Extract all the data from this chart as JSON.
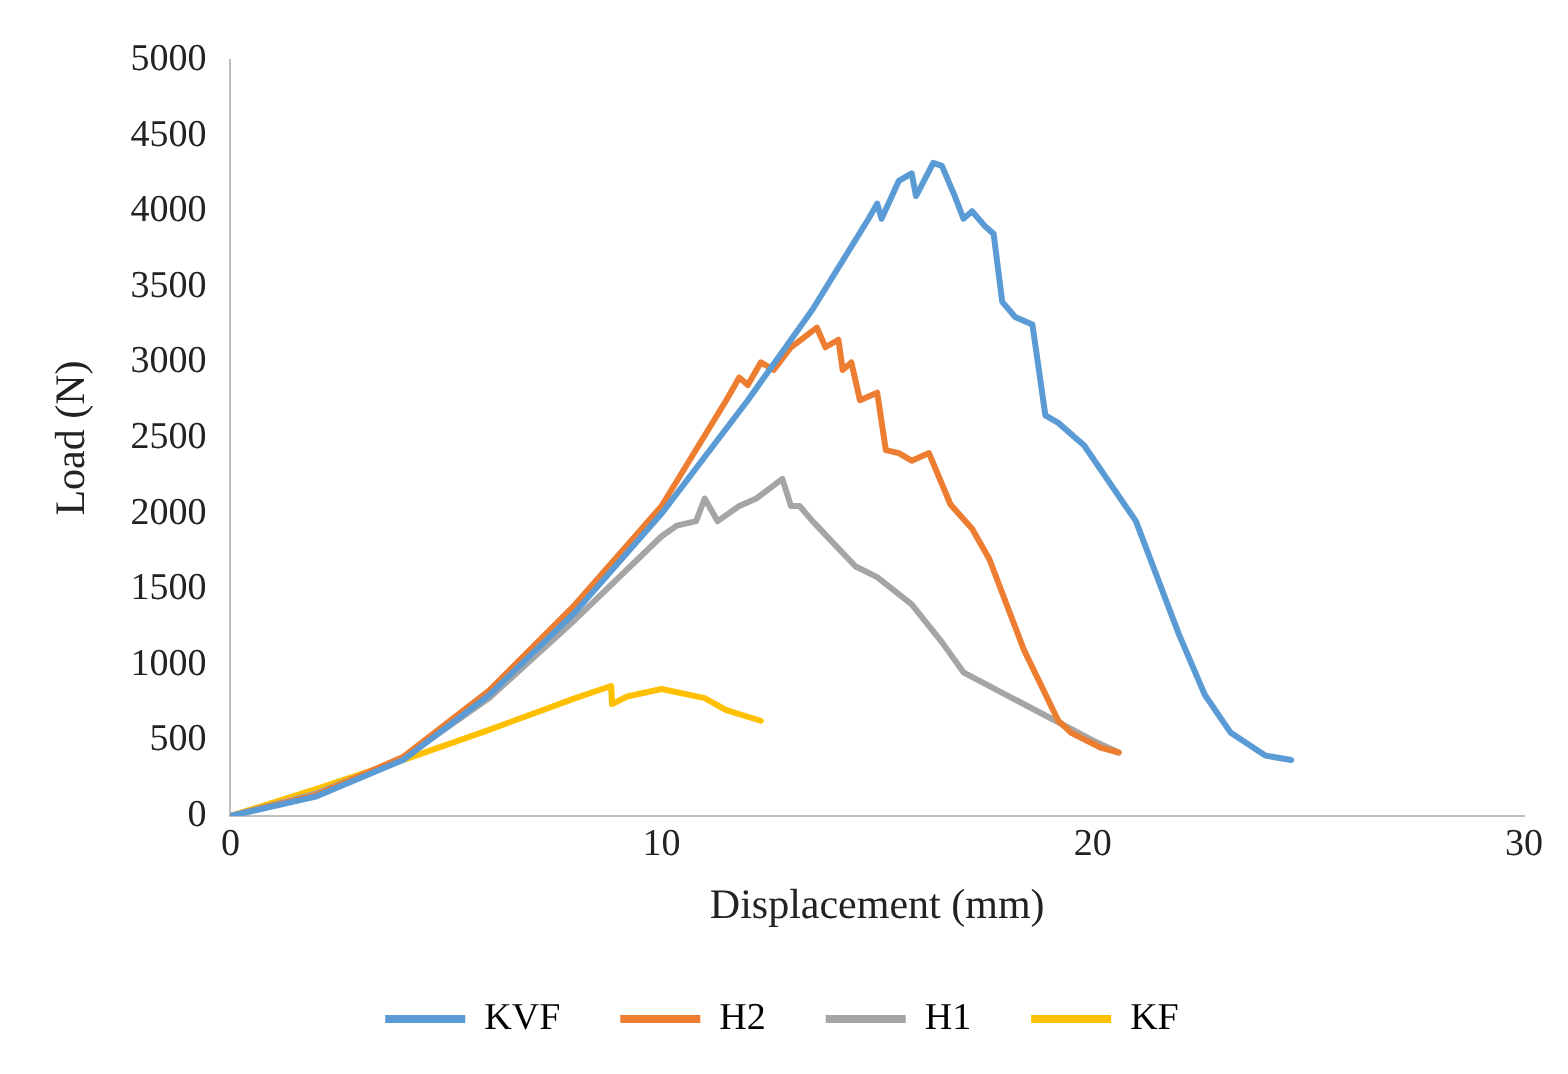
{
  "chart_data": {
    "type": "line",
    "xlabel": "Displacement (mm)",
    "ylabel": "Load (N)",
    "xlim": [
      0,
      30
    ],
    "xticks": [
      0,
      10,
      20,
      30
    ],
    "ylim": [
      0,
      5000
    ],
    "yticks": [
      0,
      500,
      1000,
      1500,
      2000,
      2500,
      3000,
      3500,
      4000,
      4500,
      5000
    ],
    "grid": false,
    "legend": "bottom",
    "marker": "none",
    "line_style": "solid",
    "series": [
      {
        "name": "KVF",
        "color": "#5b9bd5",
        "x": [
          0,
          2,
          4,
          6,
          8,
          10,
          12,
          13.5,
          14.8,
          15,
          15.1,
          15.5,
          15.8,
          15.9,
          16.3,
          16.5,
          16.8,
          17,
          17.2,
          17.5,
          17.7,
          17.9,
          18.2,
          18.6,
          18.9,
          19.2,
          19.8,
          21,
          22,
          22.6,
          23.2,
          24,
          24.6
        ],
        "values": [
          0,
          130,
          370,
          800,
          1350,
          2000,
          2750,
          3350,
          3950,
          4050,
          3950,
          4200,
          4250,
          4100,
          4320,
          4300,
          4100,
          3950,
          4000,
          3900,
          3850,
          3400,
          3300,
          3250,
          2650,
          2600,
          2450,
          1950,
          1200,
          800,
          550,
          400,
          370
        ]
      },
      {
        "name": "H2",
        "color": "#ed7d31",
        "x": [
          0,
          2,
          4,
          6,
          8,
          10,
          11.5,
          11.8,
          12,
          12.3,
          12.6,
          13,
          13.6,
          13.8,
          14.1,
          14.2,
          14.4,
          14.6,
          15,
          15.2,
          15.5,
          15.8,
          16.2,
          16.7,
          17.2,
          17.6,
          18.4,
          19.2,
          19.5,
          20.2,
          20.6
        ],
        "values": [
          0,
          140,
          390,
          830,
          1400,
          2050,
          2750,
          2900,
          2850,
          3000,
          2950,
          3100,
          3230,
          3100,
          3150,
          2950,
          3000,
          2750,
          2800,
          2420,
          2400,
          2350,
          2400,
          2060,
          1900,
          1700,
          1100,
          630,
          550,
          450,
          420
        ]
      },
      {
        "name": "H1",
        "color": "#a5a5a5",
        "x": [
          0,
          2,
          4,
          6,
          8,
          10,
          10.35,
          10.8,
          11,
          11.3,
          11.8,
          12.2,
          12.8,
          13,
          13.2,
          13.5,
          14,
          14.5,
          15,
          15.8,
          16.5,
          17,
          18,
          19,
          20,
          20.6
        ],
        "values": [
          0,
          150,
          380,
          780,
          1300,
          1850,
          1920,
          1950,
          2100,
          1950,
          2050,
          2100,
          2230,
          2050,
          2050,
          1950,
          1800,
          1650,
          1580,
          1400,
          1150,
          950,
          800,
          650,
          500,
          420
        ]
      },
      {
        "name": "KF",
        "color": "#ffc000",
        "x": [
          0,
          2,
          4,
          6,
          8,
          8.83,
          8.85,
          9.2,
          10,
          11,
          11.5,
          12.3
        ],
        "values": [
          0,
          180,
          370,
          570,
          780,
          860,
          740,
          790,
          840,
          780,
          700,
          630
        ]
      }
    ]
  }
}
